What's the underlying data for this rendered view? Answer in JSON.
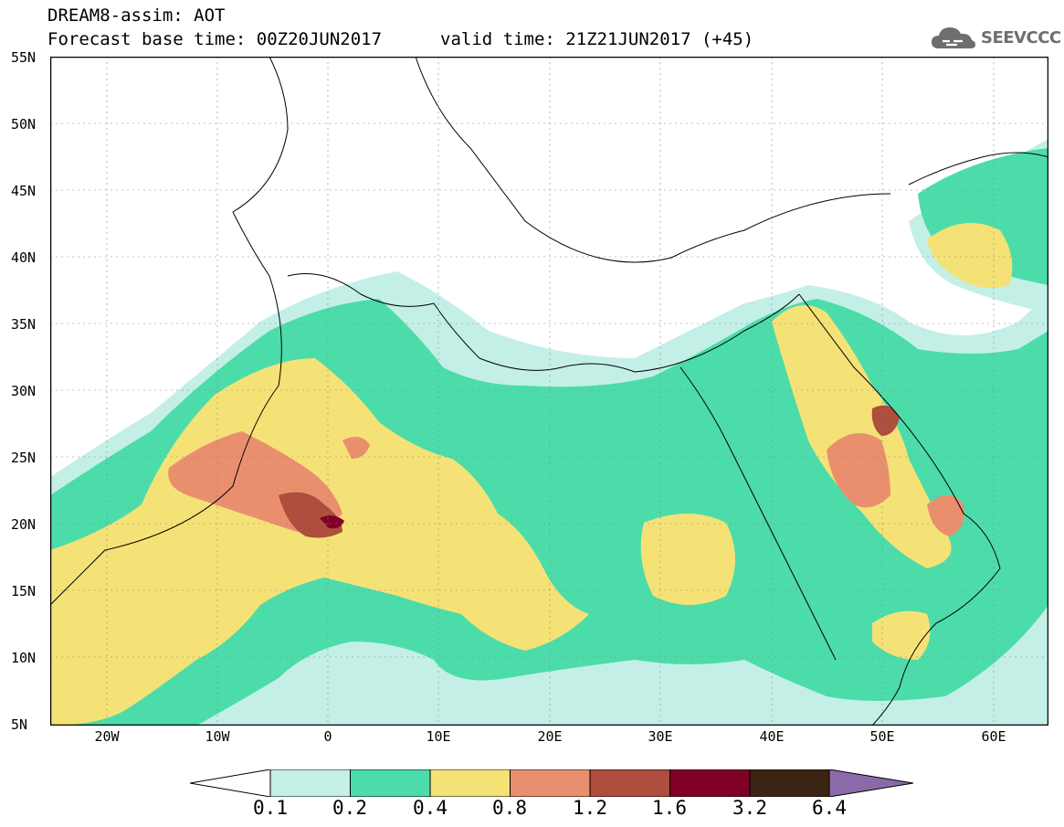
{
  "header": {
    "line1": "DREAM8-assim: AOT",
    "line2": "Forecast base time: 00Z20JUN2017",
    "valid": "valid time: 21Z21JUN2017 (+45)"
  },
  "logo": {
    "text": "SEEVCCC",
    "icon": "cloud-icon"
  },
  "map": {
    "lat_labels": [
      "55N",
      "50N",
      "45N",
      "40N",
      "35N",
      "30N",
      "25N",
      "20N",
      "15N",
      "10N",
      "5N"
    ],
    "lon_labels": [
      "20W",
      "10W",
      "0",
      "10E",
      "20E",
      "30E",
      "40E",
      "50E",
      "60E"
    ],
    "lat_range": [
      5,
      55
    ],
    "lon_range": [
      -25,
      65
    ],
    "legend": {
      "labels": [
        "0.1",
        "0.2",
        "0.4",
        "0.8",
        "1.2",
        "1.6",
        "3.2",
        "6.4"
      ],
      "colors": [
        "#c3efe7",
        "#4cdcaa",
        "#f5e276",
        "#e98f6e",
        "#ad4e3e",
        "#800026",
        "#3b2414",
        "#8a6aa8"
      ]
    }
  }
}
